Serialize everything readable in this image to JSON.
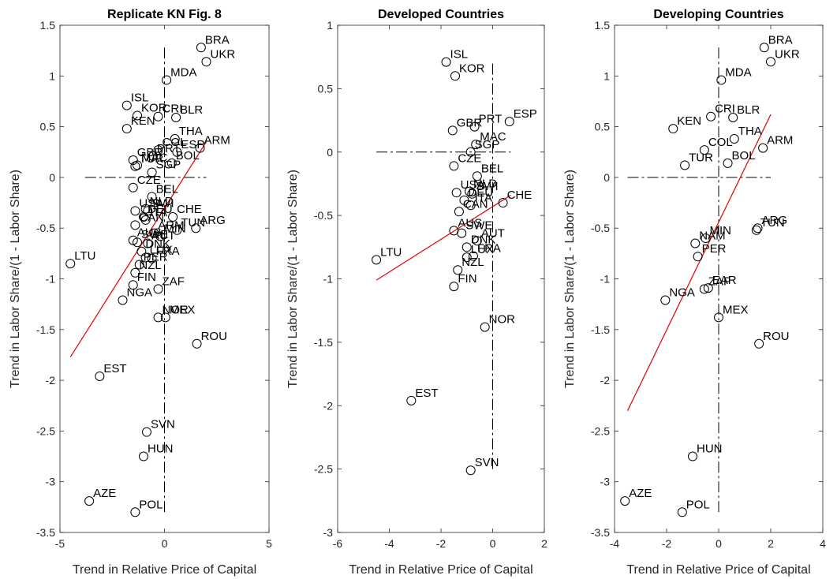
{
  "chart_data": [
    {
      "type": "scatter",
      "title": "Replicate KN Fig. 8",
      "xlabel": "Trend in Relative Price of Capital",
      "ylabel": "Trend in Labor Share/(1 - Labor Share)",
      "xlim": [
        -5,
        5
      ],
      "ylim": [
        -3.5,
        1.5
      ],
      "xticks": [
        -5,
        0,
        5
      ],
      "yticks": [
        -3.5,
        -3,
        -2.5,
        -2,
        -1.5,
        -1,
        -0.5,
        0,
        0.5,
        1,
        1.5
      ],
      "xtick_labels": [
        "-5",
        "0",
        "5"
      ],
      "ytick_labels": [
        "-3.5",
        "-3",
        "-2.5",
        "-2",
        "-1.5",
        "-1",
        "-0.5",
        "0",
        "0.5",
        "1",
        "1.5"
      ],
      "grid": false,
      "legend": "none",
      "reference_lines": {
        "x": 0,
        "y": 0,
        "x_span": [
          -3.8,
          2.0
        ],
        "y_span": [
          -3.3,
          1.28
        ]
      },
      "fit_line": {
        "color": "#e00000",
        "x": [
          -4.5,
          2.0
        ],
        "y": [
          -1.77,
          0.35
        ]
      },
      "points": [
        {
          "label": "BRA",
          "x": 1.75,
          "y": 1.28
        },
        {
          "label": "UKR",
          "x": 2.0,
          "y": 1.14
        },
        {
          "label": "MDA",
          "x": 0.1,
          "y": 0.96
        },
        {
          "label": "ISL",
          "x": -1.8,
          "y": 0.71
        },
        {
          "label": "KOR",
          "x": -1.3,
          "y": 0.61
        },
        {
          "label": "CRI",
          "x": -0.3,
          "y": 0.6
        },
        {
          "label": "BLR",
          "x": 0.55,
          "y": 0.59
        },
        {
          "label": "KEN",
          "x": -1.8,
          "y": 0.48
        },
        {
          "label": "THA",
          "x": 0.5,
          "y": 0.38
        },
        {
          "label": "COL",
          "x": -0.3,
          "y": 0.27
        },
        {
          "label": "ESP",
          "x": 0.6,
          "y": 0.25
        },
        {
          "label": "ARM",
          "x": 1.7,
          "y": 0.29
        },
        {
          "label": "GBR",
          "x": -1.5,
          "y": 0.17
        },
        {
          "label": "PRT",
          "x": -0.55,
          "y": 0.21
        },
        {
          "label": "BOL",
          "x": 0.35,
          "y": 0.14
        },
        {
          "label": "MAC",
          "x": -1.3,
          "y": 0.12
        },
        {
          "label": "SGP",
          "x": -0.6,
          "y": 0.05
        },
        {
          "label": "TUR",
          "x": -1.4,
          "y": 0.11
        },
        {
          "label": "CZE",
          "x": -1.5,
          "y": -0.1
        },
        {
          "label": "BEL",
          "x": -0.6,
          "y": -0.19
        },
        {
          "label": "USA",
          "x": -1.4,
          "y": -0.33
        },
        {
          "label": "NLD",
          "x": -0.9,
          "y": -0.31
        },
        {
          "label": "SWI",
          "x": -0.8,
          "y": -0.33
        },
        {
          "label": "CHE",
          "x": 0.4,
          "y": -0.39
        },
        {
          "label": "DEU",
          "x": -1.0,
          "y": -0.39
        },
        {
          "label": "ITA",
          "x": -0.9,
          "y": -0.42
        },
        {
          "label": "CAN",
          "x": -1.4,
          "y": -0.47
        },
        {
          "label": "TUN",
          "x": 0.6,
          "y": -0.52
        },
        {
          "label": "ARG",
          "x": 1.5,
          "y": -0.5
        },
        {
          "label": "AUS",
          "x": -1.5,
          "y": -0.62
        },
        {
          "label": "SWE",
          "x": -1.3,
          "y": -0.64
        },
        {
          "label": "ARM",
          "x": -0.5,
          "y": -0.55
        },
        {
          "label": "MIN",
          "x": -0.2,
          "y": -0.58
        },
        {
          "label": "AUT",
          "x": -0.8,
          "y": -0.65
        },
        {
          "label": "DNK",
          "x": -1.1,
          "y": -0.73
        },
        {
          "label": "LUX",
          "x": -0.9,
          "y": -0.79
        },
        {
          "label": "FRA",
          "x": -0.6,
          "y": -0.8
        },
        {
          "label": "PER",
          "x": -1.2,
          "y": -0.86
        },
        {
          "label": "LTU",
          "x": -4.5,
          "y": -0.85
        },
        {
          "label": "NZL",
          "x": -1.4,
          "y": -0.94
        },
        {
          "label": "ZAF",
          "x": -0.3,
          "y": -1.1
        },
        {
          "label": "FIN",
          "x": -1.5,
          "y": -1.06
        },
        {
          "label": "NGA",
          "x": -2.0,
          "y": -1.21
        },
        {
          "label": "NOR",
          "x": -0.3,
          "y": -1.38
        },
        {
          "label": "MEX",
          "x": 0.05,
          "y": -1.38
        },
        {
          "label": "ROU",
          "x": 1.55,
          "y": -1.64
        },
        {
          "label": "EST",
          "x": -3.1,
          "y": -1.96
        },
        {
          "label": "SVN",
          "x": -0.85,
          "y": -2.51
        },
        {
          "label": "HUN",
          "x": -1.0,
          "y": -2.75
        },
        {
          "label": "AZE",
          "x": -3.6,
          "y": -3.19
        },
        {
          "label": "POL",
          "x": -1.4,
          "y": -3.3
        }
      ]
    },
    {
      "type": "scatter",
      "title": "Developed Countries",
      "xlabel": "Trend in Relative Price of Capital",
      "ylabel": "Trend in Labor Share/(1 - Labor Share)",
      "xlim": [
        -6,
        2
      ],
      "ylim": [
        -3,
        1
      ],
      "xticks": [
        -6,
        -4,
        -2,
        0,
        2
      ],
      "yticks": [
        -3,
        -2.5,
        -2,
        -1.5,
        -1,
        -0.5,
        0,
        0.5,
        1
      ],
      "xtick_labels": [
        "-6",
        "-4",
        "-2",
        "0",
        "2"
      ],
      "ytick_labels": [
        "-3",
        "-2.5",
        "-2",
        "-1.5",
        "-1",
        "-0.5",
        "0",
        "0.5",
        "1"
      ],
      "grid": false,
      "legend": "none",
      "reference_lines": {
        "x": 0,
        "y": 0,
        "x_span": [
          -4.5,
          0.7
        ],
        "y_span": [
          -2.5,
          0.7
        ]
      },
      "fit_line": {
        "color": "#e00000",
        "x": [
          -4.5,
          0.7
        ],
        "y": [
          -1.01,
          -0.34
        ]
      },
      "points": [
        {
          "label": "ISL",
          "x": -1.8,
          "y": 0.71
        },
        {
          "label": "KOR",
          "x": -1.45,
          "y": 0.6
        },
        {
          "label": "GBR",
          "x": -1.55,
          "y": 0.17
        },
        {
          "label": "PRT",
          "x": -0.7,
          "y": 0.2
        },
        {
          "label": "ESP",
          "x": 0.65,
          "y": 0.24
        },
        {
          "label": "MAC",
          "x": -0.65,
          "y": 0.06
        },
        {
          "label": "SGP",
          "x": -0.85,
          "y": 0.0
        },
        {
          "label": "CZE",
          "x": -1.5,
          "y": -0.11
        },
        {
          "label": "BEL",
          "x": -0.6,
          "y": -0.19
        },
        {
          "label": "USA",
          "x": -1.4,
          "y": -0.32
        },
        {
          "label": "NLD",
          "x": -0.9,
          "y": -0.31
        },
        {
          "label": "SWI",
          "x": -0.8,
          "y": -0.33
        },
        {
          "label": "CHE",
          "x": 0.4,
          "y": -0.4
        },
        {
          "label": "DEU",
          "x": -1.1,
          "y": -0.38
        },
        {
          "label": "ITA",
          "x": -0.85,
          "y": -0.42
        },
        {
          "label": "CAN",
          "x": -1.3,
          "y": -0.47
        },
        {
          "label": "AUS",
          "x": -1.5,
          "y": -0.62
        },
        {
          "label": "SWE",
          "x": -1.2,
          "y": -0.64
        },
        {
          "label": "AUT",
          "x": -0.6,
          "y": -0.7
        },
        {
          "label": "DNK",
          "x": -1.0,
          "y": -0.75
        },
        {
          "label": "LUX",
          "x": -1.0,
          "y": -0.83
        },
        {
          "label": "FRA",
          "x": -0.75,
          "y": -0.82
        },
        {
          "label": "NZL",
          "x": -1.35,
          "y": -0.93
        },
        {
          "label": "FIN",
          "x": -1.5,
          "y": -1.06
        },
        {
          "label": "LTU",
          "x": -4.5,
          "y": -0.85
        },
        {
          "label": "NOR",
          "x": -0.3,
          "y": -1.38
        },
        {
          "label": "EST",
          "x": -3.15,
          "y": -1.96
        },
        {
          "label": "SVN",
          "x": -0.85,
          "y": -2.51
        }
      ]
    },
    {
      "type": "scatter",
      "title": "Developing Countries",
      "xlabel": "Trend in Relative Price of Capital",
      "ylabel": "Trend in Labor Share/(1 - Labor Share)",
      "xlim": [
        -4,
        4
      ],
      "ylim": [
        -3.5,
        1.5
      ],
      "xticks": [
        -4,
        -2,
        0,
        2,
        4
      ],
      "yticks": [
        -3.5,
        -3,
        -2.5,
        -2,
        -1.5,
        -1,
        -0.5,
        0,
        0.5,
        1,
        1.5
      ],
      "xtick_labels": [
        "-4",
        "-2",
        "0",
        "2",
        "4"
      ],
      "ytick_labels": [
        "-3.5",
        "-3",
        "-2.5",
        "-2",
        "-1.5",
        "-1",
        "-0.5",
        "0",
        "0.5",
        "1",
        "1.5"
      ],
      "grid": false,
      "legend": "none",
      "reference_lines": {
        "x": 0,
        "y": 0,
        "x_span": [
          -3.5,
          2.0
        ],
        "y_span": [
          -3.3,
          1.28
        ]
      },
      "fit_line": {
        "color": "#e00000",
        "x": [
          -3.5,
          2.0
        ],
        "y": [
          -2.3,
          0.62
        ]
      },
      "points": [
        {
          "label": "BRA",
          "x": 1.75,
          "y": 1.28
        },
        {
          "label": "UKR",
          "x": 2.0,
          "y": 1.14
        },
        {
          "label": "MDA",
          "x": 0.1,
          "y": 0.96
        },
        {
          "label": "KEN",
          "x": -1.75,
          "y": 0.48
        },
        {
          "label": "CRI",
          "x": -0.3,
          "y": 0.6
        },
        {
          "label": "BLR",
          "x": 0.55,
          "y": 0.59
        },
        {
          "label": "THA",
          "x": 0.6,
          "y": 0.38
        },
        {
          "label": "COL",
          "x": -0.55,
          "y": 0.27
        },
        {
          "label": "ARM",
          "x": 1.7,
          "y": 0.29
        },
        {
          "label": "TUR",
          "x": -1.3,
          "y": 0.12
        },
        {
          "label": "BOL",
          "x": 0.35,
          "y": 0.14
        },
        {
          "label": "NAM",
          "x": -0.9,
          "y": -0.65
        },
        {
          "label": "MIN",
          "x": -0.5,
          "y": -0.6
        },
        {
          "label": "TUN",
          "x": 1.45,
          "y": -0.52
        },
        {
          "label": "ARG",
          "x": 1.5,
          "y": -0.5
        },
        {
          "label": "PER",
          "x": -0.8,
          "y": -0.78
        },
        {
          "label": "ZAF",
          "x": -0.55,
          "y": -1.1
        },
        {
          "label": "EAR",
          "x": -0.4,
          "y": -1.09
        },
        {
          "label": "NGA",
          "x": -2.05,
          "y": -1.21
        },
        {
          "label": "MEX",
          "x": 0.0,
          "y": -1.38
        },
        {
          "label": "ROU",
          "x": 1.55,
          "y": -1.64
        },
        {
          "label": "HUN",
          "x": -1.0,
          "y": -2.75
        },
        {
          "label": "AZE",
          "x": -3.6,
          "y": -3.19
        },
        {
          "label": "POL",
          "x": -1.4,
          "y": -3.3
        }
      ]
    }
  ]
}
